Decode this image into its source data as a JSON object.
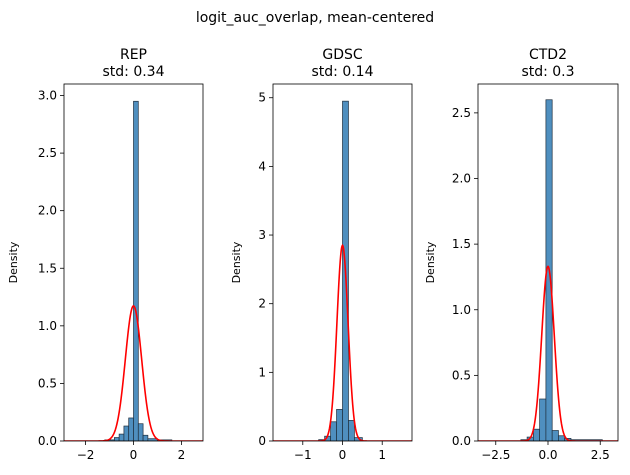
{
  "figure": {
    "suptitle": "logit_auc_overlap, mean-centered"
  },
  "chart_data": [
    {
      "type": "histogram",
      "title": "REP",
      "subtitle": "std: 0.34",
      "ylabel": "Density",
      "xlabel": "",
      "xlim": [
        -2.9,
        2.9
      ],
      "ylim": [
        0,
        3.1
      ],
      "xticks": [
        -2,
        0,
        2
      ],
      "xtick_labels": [
        "−2",
        "0",
        "2"
      ],
      "yticks": [
        0,
        0.5,
        1.0,
        1.5,
        2.0,
        2.5,
        3.0
      ],
      "ytick_labels": [
        "0.0",
        "0.5",
        "1.0",
        "1.5",
        "2.0",
        "2.5",
        "3.0"
      ],
      "bins": [
        {
          "x0": -2.4,
          "x1": -2.0,
          "y": 0.0
        },
        {
          "x0": -2.0,
          "x1": -1.6,
          "y": 0.0
        },
        {
          "x0": -1.6,
          "x1": -1.2,
          "y": 0.0
        },
        {
          "x0": -1.2,
          "x1": -0.8,
          "y": 0.01
        },
        {
          "x0": -0.8,
          "x1": -0.6,
          "y": 0.03
        },
        {
          "x0": -0.6,
          "x1": -0.4,
          "y": 0.06
        },
        {
          "x0": -0.4,
          "x1": -0.2,
          "y": 0.13
        },
        {
          "x0": -0.2,
          "x1": 0.0,
          "y": 0.2
        },
        {
          "x0": 0.0,
          "x1": 0.2,
          "y": 2.95
        },
        {
          "x0": 0.2,
          "x1": 0.4,
          "y": 0.15
        },
        {
          "x0": 0.4,
          "x1": 0.6,
          "y": 0.05
        },
        {
          "x0": 0.6,
          "x1": 1.0,
          "y": 0.02
        },
        {
          "x0": 1.0,
          "x1": 1.6,
          "y": 0.01
        },
        {
          "x0": 1.6,
          "x1": 2.4,
          "y": 0.0
        }
      ],
      "curve": {
        "mean": 0.0,
        "std": 0.34
      }
    },
    {
      "type": "histogram",
      "title": "GDSC",
      "subtitle": "std: 0.14",
      "ylabel": "Density",
      "xlabel": "",
      "xlim": [
        -1.75,
        1.75
      ],
      "ylim": [
        0,
        5.2
      ],
      "xticks": [
        -1,
        0,
        1
      ],
      "xtick_labels": [
        "−1",
        "0",
        "1"
      ],
      "yticks": [
        0,
        1,
        2,
        3,
        4,
        5
      ],
      "ytick_labels": [
        "0",
        "1",
        "2",
        "3",
        "4",
        "5"
      ],
      "bins": [
        {
          "x0": -1.45,
          "x1": -0.6,
          "y": 0.0
        },
        {
          "x0": -0.6,
          "x1": -0.45,
          "y": 0.02
        },
        {
          "x0": -0.45,
          "x1": -0.3,
          "y": 0.07
        },
        {
          "x0": -0.3,
          "x1": -0.15,
          "y": 0.28
        },
        {
          "x0": -0.15,
          "x1": 0.0,
          "y": 0.46
        },
        {
          "x0": 0.0,
          "x1": 0.15,
          "y": 4.95
        },
        {
          "x0": 0.15,
          "x1": 0.3,
          "y": 0.3
        },
        {
          "x0": 0.3,
          "x1": 0.5,
          "y": 0.05
        },
        {
          "x0": 0.5,
          "x1": 1.45,
          "y": 0.0
        }
      ],
      "curve": {
        "mean": 0.0,
        "std": 0.14
      }
    },
    {
      "type": "histogram",
      "title": "CTD2",
      "subtitle": "std: 0.3",
      "ylabel": "Density",
      "xlabel": "",
      "xlim": [
        -3.35,
        3.35
      ],
      "ylim": [
        0,
        2.72
      ],
      "xticks": [
        -2.5,
        0,
        2.5
      ],
      "xtick_labels": [
        "−2.5",
        "0.0",
        "2.5"
      ],
      "yticks": [
        0,
        0.5,
        1.0,
        1.5,
        2.0,
        2.5
      ],
      "ytick_labels": [
        "0.0",
        "0.5",
        "1.0",
        "1.5",
        "2.0",
        "2.5"
      ],
      "bins": [
        {
          "x0": -2.8,
          "x1": -1.3,
          "y": 0.0
        },
        {
          "x0": -1.3,
          "x1": -1.0,
          "y": 0.01
        },
        {
          "x0": -1.0,
          "x1": -0.7,
          "y": 0.03
        },
        {
          "x0": -0.7,
          "x1": -0.4,
          "y": 0.09
        },
        {
          "x0": -0.4,
          "x1": -0.1,
          "y": 0.32
        },
        {
          "x0": -0.1,
          "x1": 0.2,
          "y": 2.6
        },
        {
          "x0": 0.2,
          "x1": 0.5,
          "y": 0.08
        },
        {
          "x0": 0.5,
          "x1": 0.8,
          "y": 0.04
        },
        {
          "x0": 0.8,
          "x1": 1.1,
          "y": 0.02
        },
        {
          "x0": 1.1,
          "x1": 2.6,
          "y": 0.01
        }
      ],
      "curve": {
        "mean": 0.0,
        "std": 0.3
      }
    }
  ],
  "colors": {
    "bar_fill": "#4f8fbf",
    "bar_edge": "#1f2f3f",
    "curve": "#ff0000",
    "axis": "#000000"
  }
}
